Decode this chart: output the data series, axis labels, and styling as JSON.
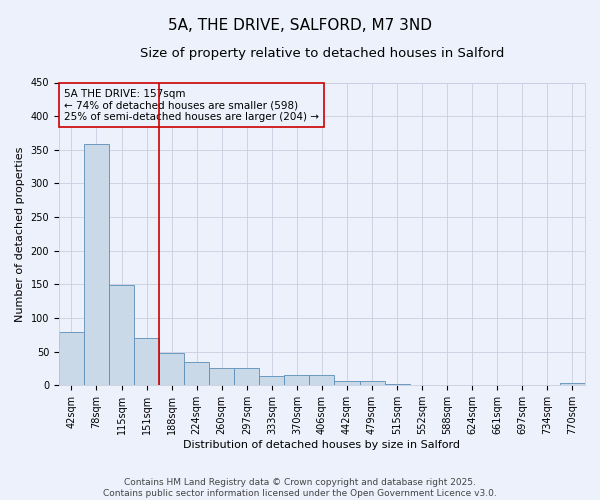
{
  "title": "5A, THE DRIVE, SALFORD, M7 3ND",
  "subtitle": "Size of property relative to detached houses in Salford",
  "xlabel": "Distribution of detached houses by size in Salford",
  "ylabel": "Number of detached properties",
  "categories": [
    "42sqm",
    "78sqm",
    "115sqm",
    "151sqm",
    "188sqm",
    "224sqm",
    "260sqm",
    "297sqm",
    "333sqm",
    "370sqm",
    "406sqm",
    "442sqm",
    "479sqm",
    "515sqm",
    "552sqm",
    "588sqm",
    "624sqm",
    "661sqm",
    "697sqm",
    "734sqm",
    "770sqm"
  ],
  "values": [
    79,
    358,
    149,
    70,
    48,
    34,
    25,
    25,
    13,
    15,
    15,
    7,
    7,
    2,
    1,
    1,
    1,
    0,
    0,
    0,
    3
  ],
  "bar_color": "#c9d9e8",
  "bar_edge_color": "#5b8db8",
  "grid_color": "#c8cfe0",
  "background_color": "#edf1fb",
  "vline_x": 3.5,
  "vline_color": "#cc0000",
  "annotation_text": "5A THE DRIVE: 157sqm\n← 74% of detached houses are smaller (598)\n25% of semi-detached houses are larger (204) →",
  "annotation_box_color": "#cc0000",
  "footer_line1": "Contains HM Land Registry data © Crown copyright and database right 2025.",
  "footer_line2": "Contains public sector information licensed under the Open Government Licence v3.0.",
  "ylim": [
    0,
    450
  ],
  "yticks": [
    0,
    50,
    100,
    150,
    200,
    250,
    300,
    350,
    400,
    450
  ],
  "title_fontsize": 11,
  "subtitle_fontsize": 9.5,
  "axis_label_fontsize": 8,
  "tick_fontsize": 7,
  "annotation_fontsize": 7.5,
  "footer_fontsize": 6.5
}
